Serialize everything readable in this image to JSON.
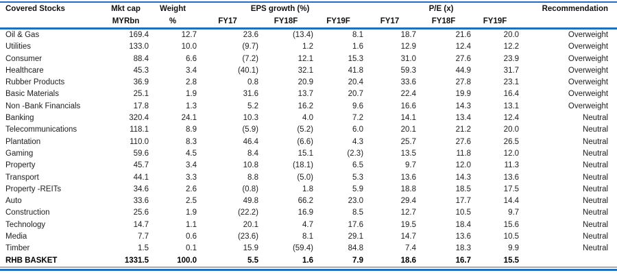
{
  "colors": {
    "accent_blue": "#1F6FBE",
    "text": "#1c1c1c"
  },
  "table": {
    "col_headers": {
      "stock": "Covered Stocks",
      "mktcap_l1": "Mkt cap",
      "mktcap_l2": "MYRbn",
      "weight_l1": "Weight",
      "weight_l2": "%",
      "eps_group": "EPS growth (%)",
      "pe_group": "P/E (x)",
      "fy17": "FY17",
      "fy18f": "FY18F",
      "fy19f": "FY19F",
      "recommendation": "Recommendation"
    },
    "rows": [
      {
        "name": "Oil & Gas",
        "mktcap": "169.4",
        "weight": "12.7",
        "eps17": "23.6",
        "eps18": "(13.4)",
        "eps19": "8.1",
        "pe17": "18.7",
        "pe18": "21.6",
        "pe19": "20.0",
        "rec": "Overweight",
        "bold": false
      },
      {
        "name": "Utilities",
        "mktcap": "133.0",
        "weight": "10.0",
        "eps17": "(9.7)",
        "eps18": "1.2",
        "eps19": "1.6",
        "pe17": "12.9",
        "pe18": "12.4",
        "pe19": "12.2",
        "rec": "Overweight",
        "bold": false
      },
      {
        "name": "Consumer",
        "mktcap": "88.4",
        "weight": "6.6",
        "eps17": "(7.2)",
        "eps18": "12.1",
        "eps19": "15.3",
        "pe17": "31.0",
        "pe18": "27.6",
        "pe19": "23.9",
        "rec": "Overweight",
        "bold": false
      },
      {
        "name": "Healthcare",
        "mktcap": "45.3",
        "weight": "3.4",
        "eps17": "(40.1)",
        "eps18": "32.1",
        "eps19": "41.8",
        "pe17": "59.3",
        "pe18": "44.9",
        "pe19": "31.7",
        "rec": "Overweight",
        "bold": false
      },
      {
        "name": "Rubber Products",
        "mktcap": "36.9",
        "weight": "2.8",
        "eps17": "0.8",
        "eps18": "20.9",
        "eps19": "20.4",
        "pe17": "33.6",
        "pe18": "27.8",
        "pe19": "23.1",
        "rec": "Overweight",
        "bold": false
      },
      {
        "name": "Basic Materials",
        "mktcap": "25.1",
        "weight": "1.9",
        "eps17": "31.6",
        "eps18": "13.7",
        "eps19": "20.7",
        "pe17": "22.4",
        "pe18": "19.9",
        "pe19": "16.4",
        "rec": "Overweight",
        "bold": false
      },
      {
        "name": "Non -Bank Financials",
        "mktcap": "17.8",
        "weight": "1.3",
        "eps17": "5.2",
        "eps18": "16.2",
        "eps19": "9.6",
        "pe17": "16.6",
        "pe18": "14.3",
        "pe19": "13.1",
        "rec": "Overweight",
        "bold": false
      },
      {
        "name": "Banking",
        "mktcap": "320.4",
        "weight": "24.1",
        "eps17": "10.3",
        "eps18": "4.0",
        "eps19": "7.2",
        "pe17": "14.1",
        "pe18": "13.4",
        "pe19": "12.4",
        "rec": "Neutral",
        "bold": false
      },
      {
        "name": "Telecommunications",
        "mktcap": "118.1",
        "weight": "8.9",
        "eps17": "(5.9)",
        "eps18": "(5.2)",
        "eps19": "6.0",
        "pe17": "20.1",
        "pe18": "21.2",
        "pe19": "20.0",
        "rec": "Neutral",
        "bold": false
      },
      {
        "name": "Plantation",
        "mktcap": "110.0",
        "weight": "8.3",
        "eps17": "46.4",
        "eps18": "(6.6)",
        "eps19": "4.3",
        "pe17": "25.7",
        "pe18": "27.6",
        "pe19": "26.5",
        "rec": "Neutral",
        "bold": false
      },
      {
        "name": "Gaming",
        "mktcap": "59.6",
        "weight": "4.5",
        "eps17": "8.4",
        "eps18": "15.1",
        "eps19": "(2.3)",
        "pe17": "13.5",
        "pe18": "11.8",
        "pe19": "12.0",
        "rec": "Neutral",
        "bold": false
      },
      {
        "name": "Property",
        "mktcap": "45.7",
        "weight": "3.4",
        "eps17": "10.8",
        "eps18": "(18.1)",
        "eps19": "6.5",
        "pe17": "9.7",
        "pe18": "12.0",
        "pe19": "11.3",
        "rec": "Neutral",
        "bold": false
      },
      {
        "name": "Transport",
        "mktcap": "44.1",
        "weight": "3.3",
        "eps17": "8.8",
        "eps18": "(5.0)",
        "eps19": "5.3",
        "pe17": "13.6",
        "pe18": "14.3",
        "pe19": "13.6",
        "rec": "Neutral",
        "bold": false
      },
      {
        "name": "Property -REITs",
        "mktcap": "34.6",
        "weight": "2.6",
        "eps17": "(0.8)",
        "eps18": "1.8",
        "eps19": "5.9",
        "pe17": "18.8",
        "pe18": "18.5",
        "pe19": "17.5",
        "rec": "Neutral",
        "bold": false
      },
      {
        "name": "Auto",
        "mktcap": "33.6",
        "weight": "2.5",
        "eps17": "49.8",
        "eps18": "66.2",
        "eps19": "23.0",
        "pe17": "29.4",
        "pe18": "17.7",
        "pe19": "14.4",
        "rec": "Neutral",
        "bold": false
      },
      {
        "name": "Construction",
        "mktcap": "25.6",
        "weight": "1.9",
        "eps17": "(22.2)",
        "eps18": "16.9",
        "eps19": "8.5",
        "pe17": "12.7",
        "pe18": "10.5",
        "pe19": "9.7",
        "rec": "Neutral",
        "bold": false
      },
      {
        "name": "Technology",
        "mktcap": "14.7",
        "weight": "1.1",
        "eps17": "20.1",
        "eps18": "4.7",
        "eps19": "17.6",
        "pe17": "19.5",
        "pe18": "18.4",
        "pe19": "15.6",
        "rec": "Neutral",
        "bold": false
      },
      {
        "name": "Media",
        "mktcap": "7.7",
        "weight": "0.6",
        "eps17": "(23.6)",
        "eps18": "8.1",
        "eps19": "29.1",
        "pe17": "14.7",
        "pe18": "13.6",
        "pe19": "10.5",
        "rec": "Neutral",
        "bold": false
      },
      {
        "name": "Timber",
        "mktcap": "1.5",
        "weight": "0.1",
        "eps17": "15.9",
        "eps18": "(59.4)",
        "eps19": "84.8",
        "pe17": "7.4",
        "pe18": "18.3",
        "pe19": "9.9",
        "rec": "Neutral",
        "bold": false
      },
      {
        "name": "RHB BASKET",
        "mktcap": "1331.5",
        "weight": "100.0",
        "eps17": "5.5",
        "eps18": "1.6",
        "eps19": "7.9",
        "pe17": "18.6",
        "pe18": "16.7",
        "pe19": "15.5",
        "rec": "",
        "bold": true
      }
    ]
  }
}
